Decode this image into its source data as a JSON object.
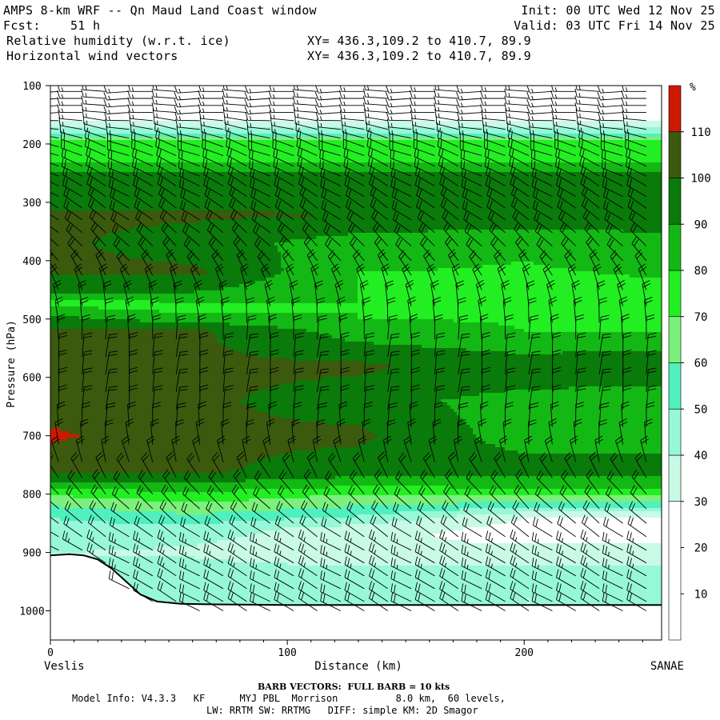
{
  "header": {
    "title": "AMPS 8-km WRF -- Qn Maud Land Coast window",
    "forecast": "Fcst:    51 h",
    "field1": "Relative humidity (w.r.t. ice)",
    "field2": "Horizontal wind vectors",
    "init": "Init: 00 UTC Wed 12 Nov 25",
    "valid": "Valid: 03 UTC Fri 14 Nov 25",
    "xy1": "XY= 436.3,109.2 to 410.7, 89.9",
    "xy2": "XY= 436.3,109.2 to 410.7, 89.9"
  },
  "footer": {
    "barb_note": "BARB VECTORS:  FULL BARB = 10 kts",
    "line1": "Model Info: V4.3.3   KF      MYJ PBL  Morrison          8.0 km,  60 levels,",
    "line2": "LW: RRTM SW: RRTMG   DIFF: simple KM: 2D Smagor"
  },
  "chart_data": {
    "type": "heatmap",
    "title": "Relative humidity (w.r.t. ice)",
    "xlabel": "Distance (km)",
    "ylabel": "Pressure (hPa)",
    "xlim": [
      0,
      258
    ],
    "ylim": [
      1050,
      100
    ],
    "x_ticks": [
      0,
      100,
      200
    ],
    "y_ticks": [
      100,
      200,
      300,
      400,
      500,
      600,
      700,
      800,
      900,
      1000
    ],
    "x_endpoints": {
      "left": "Veslis",
      "right": "SANAE"
    },
    "colorbar": {
      "unit": "%",
      "labels": [
        10,
        20,
        30,
        40,
        50,
        60,
        70,
        80,
        90,
        100,
        110
      ],
      "bands": [
        {
          "from": 0,
          "to": 30,
          "color": "#ffffff"
        },
        {
          "from": 30,
          "to": 40,
          "color": "#c8fae6"
        },
        {
          "from": 40,
          "to": 50,
          "color": "#96f8d6"
        },
        {
          "from": 50,
          "to": 60,
          "color": "#50f0be"
        },
        {
          "from": 60,
          "to": 70,
          "color": "#7cf07c"
        },
        {
          "from": 70,
          "to": 80,
          "color": "#22ee22"
        },
        {
          "from": 80,
          "to": 90,
          "color": "#14b814"
        },
        {
          "from": 90,
          "to": 100,
          "color": "#0a7a0a"
        },
        {
          "from": 100,
          "to": 110,
          "color": "#3b5a0e"
        },
        {
          "from": 110,
          "to": 120,
          "color": "#cc1a00"
        }
      ]
    },
    "rh_profiles": [
      {
        "x": 0,
        "p": [
          120,
          180,
          200,
          220,
          260,
          290,
          320,
          370,
          420,
          460,
          470,
          490,
          520,
          620,
          700,
          760,
          780,
          790,
          810,
          840,
          880,
          900
        ],
        "rh": [
          0,
          45,
          80,
          75,
          95,
          92,
          102,
          102,
          102,
          88,
          75,
          88,
          102,
          102,
          112,
          102,
          90,
          80,
          65,
          50,
          45,
          40
        ]
      },
      {
        "x": 60,
        "p": [
          120,
          180,
          200,
          220,
          260,
          290,
          320,
          370,
          420,
          460,
          480,
          500,
          520,
          620,
          720,
          760,
          780,
          800,
          830,
          860,
          900,
          950,
          980
        ],
        "rh": [
          0,
          45,
          80,
          75,
          95,
          92,
          102,
          95,
          102,
          88,
          75,
          85,
          102,
          102,
          102,
          102,
          90,
          78,
          62,
          45,
          38,
          50,
          45
        ]
      },
      {
        "x": 130,
        "p": [
          120,
          180,
          200,
          220,
          260,
          290,
          320,
          370,
          420,
          460,
          500,
          540,
          580,
          640,
          700,
          760,
          780,
          800,
          830,
          860,
          900,
          950,
          980
        ],
        "rh": [
          0,
          45,
          80,
          75,
          95,
          92,
          100,
          85,
          80,
          80,
          80,
          90,
          102,
          95,
          102,
          95,
          85,
          70,
          55,
          35,
          30,
          50,
          40
        ]
      },
      {
        "x": 200,
        "p": [
          120,
          180,
          200,
          220,
          260,
          290,
          320,
          360,
          400,
          460,
          520,
          560,
          600,
          640,
          700,
          760,
          790,
          810,
          840,
          870,
          900,
          950,
          980
        ],
        "rh": [
          0,
          45,
          80,
          75,
          95,
          92,
          98,
          85,
          80,
          78,
          80,
          90,
          95,
          85,
          85,
          95,
          80,
          65,
          30,
          25,
          35,
          45,
          40
        ]
      },
      {
        "x": 258,
        "p": [
          120,
          180,
          200,
          220,
          260,
          290,
          320,
          360,
          400,
          460,
          520,
          560,
          600,
          640,
          700,
          760,
          790,
          810,
          840,
          870,
          900,
          950,
          980
        ],
        "rh": [
          0,
          45,
          80,
          75,
          95,
          95,
          98,
          88,
          82,
          78,
          80,
          92,
          95,
          82,
          85,
          95,
          80,
          65,
          30,
          25,
          35,
          45,
          40
        ]
      }
    ],
    "terrain": {
      "x": [
        0,
        8,
        14,
        20,
        26,
        32,
        38,
        45,
        55,
        70,
        100,
        150,
        200,
        258
      ],
      "p": [
        905,
        903,
        905,
        912,
        928,
        950,
        972,
        984,
        988,
        989,
        990,
        990,
        990,
        990
      ]
    },
    "wind_barbs": {
      "levels": [
        110,
        122,
        134,
        146,
        160,
        175,
        190,
        205,
        220,
        238,
        255,
        272,
        290,
        310,
        330,
        352,
        375,
        400,
        425,
        450,
        478,
        506,
        535,
        565,
        595,
        625,
        655,
        685,
        715,
        745,
        772,
        800,
        825,
        850,
        873,
        896,
        918,
        940,
        962,
        984,
        1000
      ],
      "directions_deg": [
        270,
        270,
        270,
        270,
        275,
        280,
        285,
        290,
        290,
        295,
        295,
        300,
        300,
        305,
        305,
        310,
        315,
        320,
        330,
        340,
        350,
        355,
        0,
        5,
        5,
        5,
        5,
        0,
        355,
        345,
        330,
        320,
        315,
        310,
        305,
        300,
        300,
        300,
        300,
        300,
        300
      ],
      "speeds_kts": [
        15,
        15,
        15,
        15,
        15,
        15,
        15,
        20,
        20,
        20,
        20,
        20,
        20,
        20,
        20,
        20,
        20,
        20,
        20,
        20,
        20,
        20,
        20,
        20,
        20,
        20,
        20,
        20,
        20,
        20,
        20,
        20,
        20,
        20,
        20,
        25,
        25,
        25,
        20,
        20,
        20
      ]
    }
  }
}
